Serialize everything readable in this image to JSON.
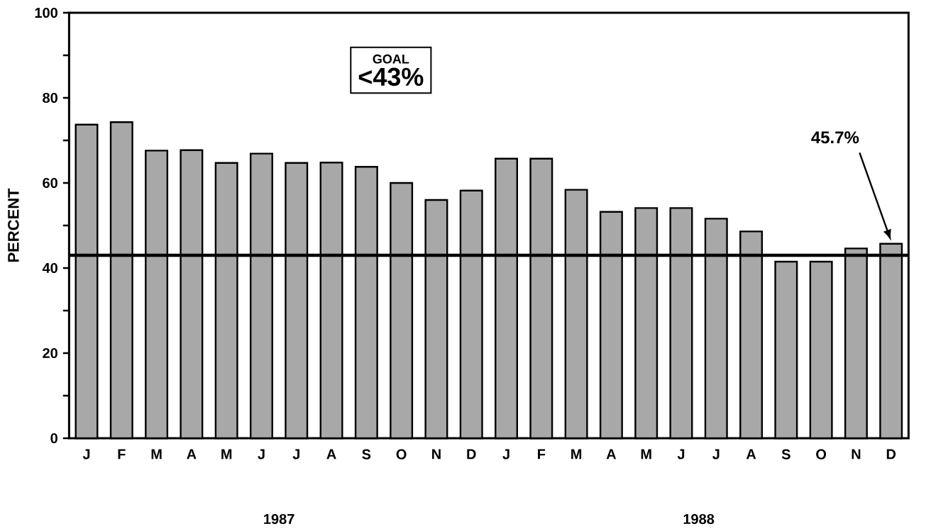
{
  "chart_data": {
    "type": "bar",
    "ylabel": "PERCENT",
    "categories": [
      "J",
      "F",
      "M",
      "A",
      "M",
      "J",
      "J",
      "A",
      "S",
      "O",
      "N",
      "D",
      "J",
      "F",
      "M",
      "A",
      "M",
      "J",
      "J",
      "A",
      "S",
      "O",
      "N",
      "D"
    ],
    "values": [
      73.7,
      74.3,
      67.6,
      67.7,
      64.7,
      66.9,
      64.7,
      64.8,
      63.8,
      60.0,
      56.0,
      58.2,
      65.7,
      65.7,
      58.4,
      53.2,
      54.1,
      54.1,
      51.6,
      48.6,
      41.5,
      41.5,
      44.6,
      45.7
    ],
    "color": "#a8a8a8",
    "ylim": [
      0,
      100
    ],
    "yticks": [
      0,
      {
        "value": 10,
        "label": null
      },
      20,
      {
        "value": 30,
        "label": null
      },
      40,
      {
        "value": 50,
        "label": null
      },
      60,
      {
        "value": 70,
        "label": null
      },
      80,
      {
        "value": 90,
        "label": null
      },
      100
    ],
    "ref_lines": [
      {
        "axis": "y",
        "value": 43,
        "color": "#000000"
      }
    ],
    "annotations": [
      "GOAL",
      "<43%",
      "1987",
      "1988",
      "45.7%"
    ]
  }
}
